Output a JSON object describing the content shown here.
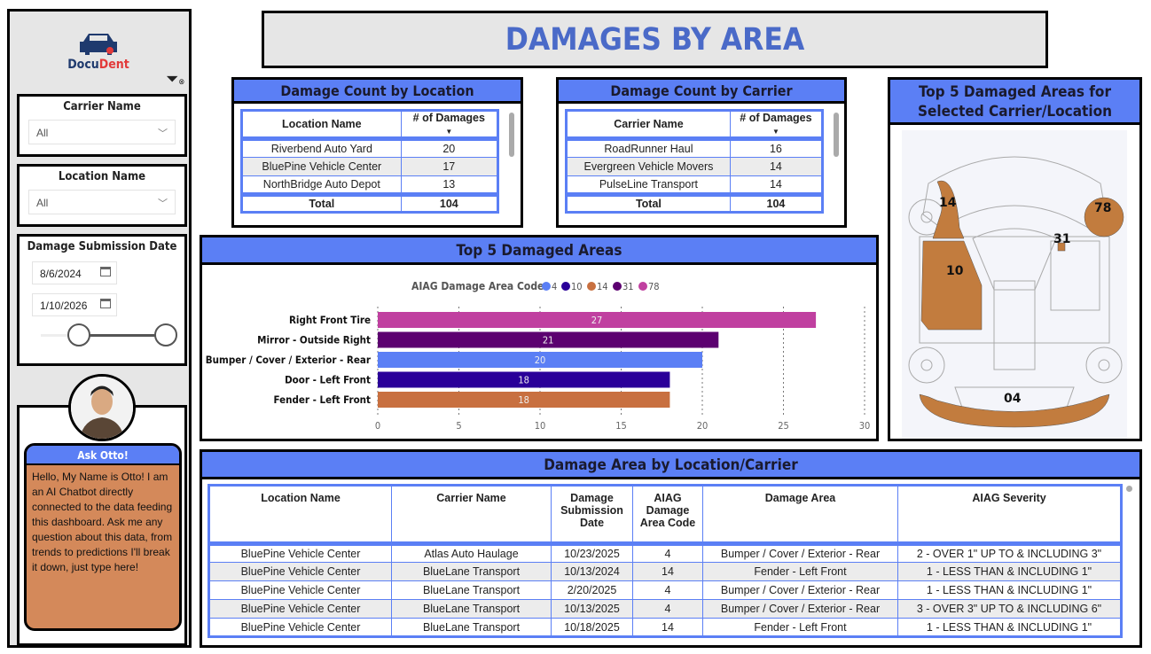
{
  "title": "DAMAGES BY AREA",
  "logo": {
    "text_a": "Docu",
    "text_b": "Dent"
  },
  "sidebar": {
    "carrier": {
      "label": "Carrier Name",
      "value": "All"
    },
    "location": {
      "label": "Location Name",
      "value": "All"
    },
    "date": {
      "label": "Damage Submission Date",
      "start": "8/6/2024",
      "end": "1/10/2026",
      "range_fraction": [
        0.25,
        1.0
      ]
    },
    "otto": {
      "header": "Ask Otto!",
      "message": "Hello, My Name is Otto! I am an AI Chatbot directly connected to the data feeding this dashboard. Ask me any question about this data, from trends to predictions I'll break it down, just type here!"
    }
  },
  "by_location": {
    "title": "Damage Count by Location",
    "headers": [
      "Location Name",
      "# of Damages"
    ],
    "rows": [
      [
        "Riverbend Auto Yard",
        "20"
      ],
      [
        "BluePine Vehicle Center",
        "17"
      ],
      [
        "NorthBridge Auto Depot",
        "13"
      ]
    ],
    "total_label": "Total",
    "total": "104"
  },
  "by_carrier": {
    "title": "Damage Count by Carrier",
    "headers": [
      "Carrier Name",
      "# of Damages"
    ],
    "rows": [
      [
        "RoadRunner Haul",
        "16"
      ],
      [
        "Evergreen Vehicle Movers",
        "14"
      ],
      [
        "PulseLine Transport",
        "14"
      ]
    ],
    "total_label": "Total",
    "total": "104"
  },
  "car_panel": {
    "title_line1": "Top 5 Damaged Areas for",
    "title_line2": "Selected Carrier/Location",
    "labels": [
      "14",
      "78",
      "31",
      "10",
      "04"
    ],
    "fill_color": "#c27c3e"
  },
  "chart_data": {
    "type": "bar",
    "orientation": "horizontal",
    "title": "Top 5 Damaged Areas",
    "legend_title": "AIAG Damage Area Code",
    "legend_position": "top",
    "legend": [
      {
        "name": "4",
        "color": "#5b7ff5"
      },
      {
        "name": "10",
        "color": "#2a0099"
      },
      {
        "name": "14",
        "color": "#c87040"
      },
      {
        "name": "31",
        "color": "#5c0070"
      },
      {
        "name": "78",
        "color": "#c040a0"
      }
    ],
    "categories": [
      "Right Front Tire",
      "Mirror - Outside Right",
      "Bumper / Cover / Exterior - Rear",
      "Door - Left Front",
      "Fender - Left Front"
    ],
    "values": [
      27,
      21,
      20,
      18,
      18
    ],
    "colors": [
      "#c040a0",
      "#5c0070",
      "#5b7ff5",
      "#2a0099",
      "#c87040"
    ],
    "xlim": [
      0,
      30
    ],
    "xticks": [
      0,
      5,
      10,
      15,
      20,
      25,
      30
    ],
    "grid": "vertical dotted",
    "data_labels": true
  },
  "detail": {
    "title": "Damage Area by Location/Carrier",
    "headers": [
      "Location Name",
      "Carrier Name",
      "Damage Submission Date",
      "AIAG Damage Area Code",
      "Damage Area",
      "AIAG Severity"
    ],
    "rows": [
      [
        "BluePine Vehicle Center",
        "Atlas Auto Haulage",
        "10/23/2025",
        "4",
        "Bumper / Cover / Exterior - Rear",
        "2 - OVER 1\" UP TO & INCLUDING 3\""
      ],
      [
        "BluePine Vehicle Center",
        "BlueLane Transport",
        "10/13/2024",
        "14",
        "Fender - Left Front",
        "1 - LESS THAN & INCLUDING 1\""
      ],
      [
        "BluePine Vehicle Center",
        "BlueLane Transport",
        "2/20/2025",
        "4",
        "Bumper / Cover / Exterior - Rear",
        "1 - LESS THAN & INCLUDING 1\""
      ],
      [
        "BluePine Vehicle Center",
        "BlueLane Transport",
        "10/13/2025",
        "4",
        "Bumper / Cover / Exterior - Rear",
        "3 - OVER 3\" UP TO & INCLUDING 6\""
      ],
      [
        "BluePine Vehicle Center",
        "BlueLane Transport",
        "10/18/2025",
        "14",
        "Fender - Left Front",
        "1 - LESS THAN & INCLUDING 1\""
      ]
    ]
  }
}
